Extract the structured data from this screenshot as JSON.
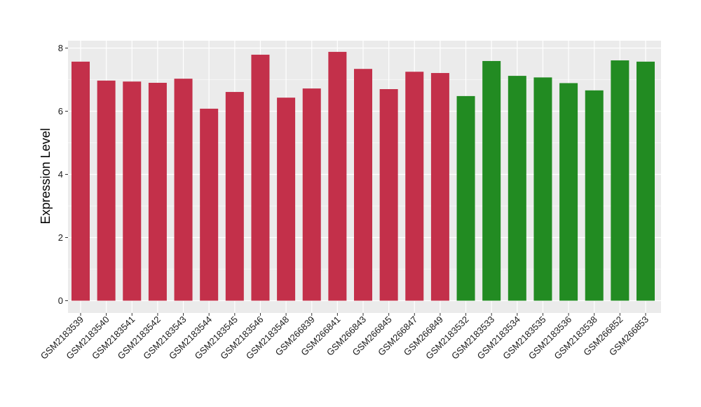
{
  "chart_data": {
    "type": "bar",
    "title": "",
    "xlabel": "",
    "ylabel": "Expression Level",
    "ylim": [
      0,
      8.2
    ],
    "yticks": [
      0,
      2,
      4,
      6,
      8
    ],
    "grid": true,
    "legend": "none",
    "categories": [
      "GSM2183539",
      "GSM2183540",
      "GSM2183541",
      "GSM2183542",
      "GSM2183543",
      "GSM2183544",
      "GSM2183545",
      "GSM2183546",
      "GSM2183548",
      "GSM266839",
      "GSM266841",
      "GSM266843",
      "GSM266845",
      "GSM266847",
      "GSM266849",
      "GSM2183532",
      "GSM2183533",
      "GSM2183534",
      "GSM2183535",
      "GSM2183536",
      "GSM2183538",
      "GSM266852",
      "GSM266853"
    ],
    "values": [
      7.57,
      6.97,
      6.94,
      6.9,
      7.03,
      6.08,
      6.61,
      7.79,
      6.43,
      6.72,
      7.88,
      7.34,
      6.7,
      7.25,
      7.21,
      6.48,
      7.59,
      7.12,
      7.07,
      6.89,
      6.66,
      7.61,
      7.57
    ],
    "group_sizes": [
      15,
      8
    ],
    "colors": [
      "#c3304a",
      "#228b22"
    ],
    "panel_background": "#ebebeb",
    "gridline_color": "#ffffff"
  }
}
